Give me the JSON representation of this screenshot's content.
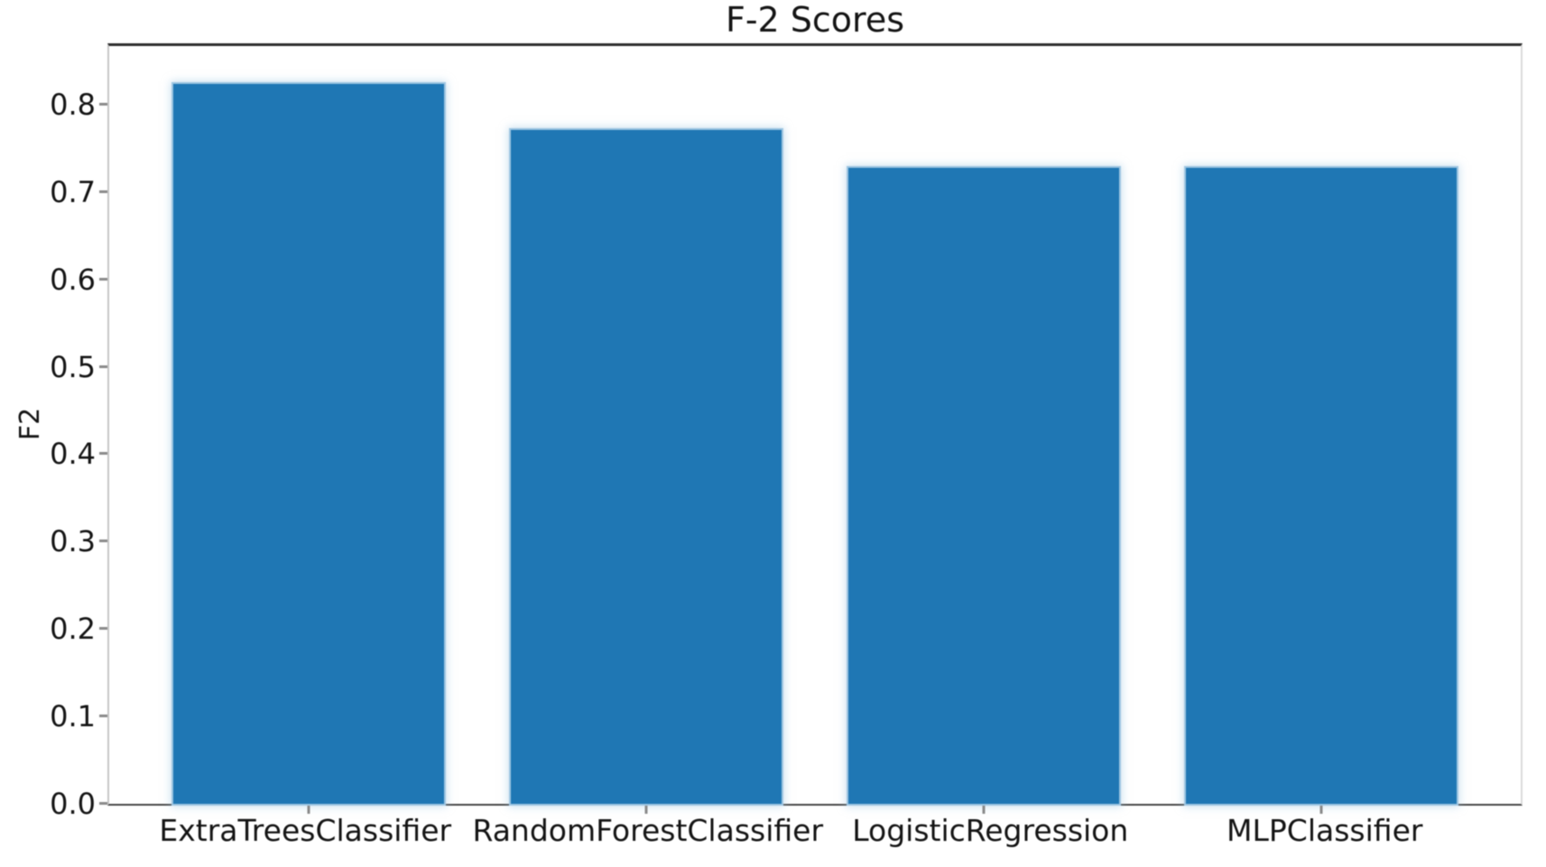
{
  "chart_data": {
    "type": "bar",
    "title": "F-2 Scores",
    "ylabel": "F2",
    "xlabel": "",
    "categories": [
      "ExtraTreesClassifier",
      "RandomForestClassifier",
      "LogisticRegression",
      "MLPClassifier"
    ],
    "values": [
      0.824,
      0.771,
      0.728,
      0.728
    ],
    "ytick_values": [
      0.0,
      0.1,
      0.2,
      0.3,
      0.4,
      0.5,
      0.6,
      0.7,
      0.8
    ],
    "ytick_labels": [
      "0.0",
      "0.1",
      "0.2",
      "0.3",
      "0.4",
      "0.5",
      "0.6",
      "0.7",
      "0.8"
    ],
    "ylim": [
      0,
      0.867
    ],
    "grid": false,
    "legend": false,
    "bar_color": "#1f77b4",
    "bar_edge_color": "#9fc6e2",
    "background_color": "#ffffff",
    "text_color": "#141414"
  }
}
